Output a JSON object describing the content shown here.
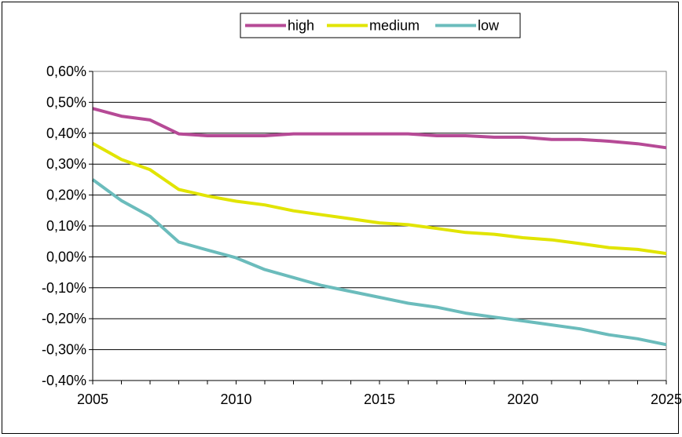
{
  "chart_data": {
    "type": "line",
    "title": "",
    "xlabel": "",
    "ylabel": "",
    "x": [
      2005,
      2006,
      2007,
      2008,
      2009,
      2010,
      2011,
      2012,
      2013,
      2014,
      2015,
      2016,
      2017,
      2018,
      2019,
      2020,
      2021,
      2022,
      2023,
      2024,
      2025
    ],
    "xlim": [
      2005,
      2025
    ],
    "ylim": [
      -0.4,
      0.6
    ],
    "y_ticks": [
      "-0,40%",
      "-0,30%",
      "-0,20%",
      "-0,10%",
      "0,00%",
      "0,10%",
      "0,20%",
      "0,30%",
      "0,40%",
      "0,50%",
      "0,60%"
    ],
    "y_tick_values": [
      -0.4,
      -0.3,
      -0.2,
      -0.1,
      0.0,
      0.1,
      0.2,
      0.3,
      0.4,
      0.5,
      0.6
    ],
    "x_ticks": [
      "2005",
      "2010",
      "2015",
      "2020",
      "2025"
    ],
    "x_tick_values": [
      2005,
      2010,
      2015,
      2020,
      2025
    ],
    "grid": "horizontal",
    "legend": "top",
    "series": [
      {
        "name": "high",
        "color": "#b64a96",
        "values": [
          0.48,
          0.455,
          0.443,
          0.398,
          0.392,
          0.392,
          0.392,
          0.398,
          0.398,
          0.398,
          0.398,
          0.398,
          0.392,
          0.392,
          0.387,
          0.387,
          0.38,
          0.38,
          0.374,
          0.366,
          0.353
        ]
      },
      {
        "name": "medium",
        "color": "#e1e400",
        "values": [
          0.367,
          0.315,
          0.282,
          0.218,
          0.197,
          0.18,
          0.168,
          0.149,
          0.136,
          0.123,
          0.11,
          0.104,
          0.092,
          0.079,
          0.073,
          0.062,
          0.055,
          0.043,
          0.03,
          0.024,
          0.011
        ]
      },
      {
        "name": "low",
        "color": "#6bbcbc",
        "values": [
          0.25,
          0.182,
          0.131,
          0.048,
          0.022,
          -0.003,
          -0.041,
          -0.067,
          -0.093,
          -0.112,
          -0.131,
          -0.15,
          -0.163,
          -0.182,
          -0.195,
          -0.207,
          -0.22,
          -0.233,
          -0.252,
          -0.265,
          -0.284
        ]
      }
    ]
  }
}
